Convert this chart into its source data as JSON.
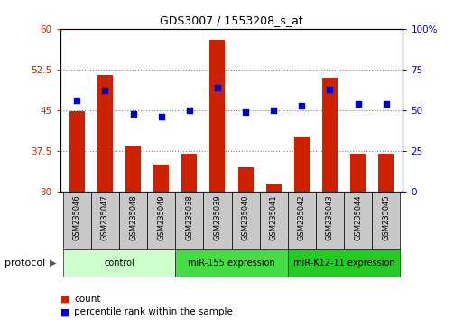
{
  "title": "GDS3007 / 1553208_s_at",
  "categories": [
    "GSM235046",
    "GSM235047",
    "GSM235048",
    "GSM235049",
    "GSM235038",
    "GSM235039",
    "GSM235040",
    "GSM235041",
    "GSM235042",
    "GSM235043",
    "GSM235044",
    "GSM235045"
  ],
  "bar_values": [
    44.8,
    51.5,
    38.5,
    35.0,
    37.0,
    58.0,
    34.5,
    31.5,
    40.0,
    51.0,
    37.0,
    37.0
  ],
  "dot_values": [
    56.0,
    62.0,
    48.0,
    46.0,
    50.0,
    64.0,
    49.0,
    50.0,
    53.0,
    63.0,
    54.0,
    54.0
  ],
  "bar_color": "#cc2200",
  "dot_color": "#0000cc",
  "ylim_left": [
    30,
    60
  ],
  "ylim_right": [
    0,
    100
  ],
  "yticks_left": [
    30,
    37.5,
    45,
    52.5,
    60
  ],
  "yticks_right": [
    0,
    25,
    50,
    75,
    100
  ],
  "ytick_labels_left": [
    "30",
    "37.5",
    "45",
    "52.5",
    "60"
  ],
  "ytick_labels_right": [
    "0",
    "25",
    "50",
    "75",
    "100%"
  ],
  "groups": [
    {
      "label": "control",
      "start": 0,
      "end": 4,
      "color": "#ccffcc"
    },
    {
      "label": "miR-155 expression",
      "start": 4,
      "end": 8,
      "color": "#44dd44"
    },
    {
      "label": "miR-K12-11 expression",
      "start": 8,
      "end": 12,
      "color": "#22cc22"
    }
  ],
  "protocol_label": "protocol",
  "legend_count_label": "count",
  "legend_percentile_label": "percentile rank within the sample",
  "bar_bottom": 30,
  "fig_width": 5.13,
  "fig_height": 3.54,
  "dpi": 100
}
